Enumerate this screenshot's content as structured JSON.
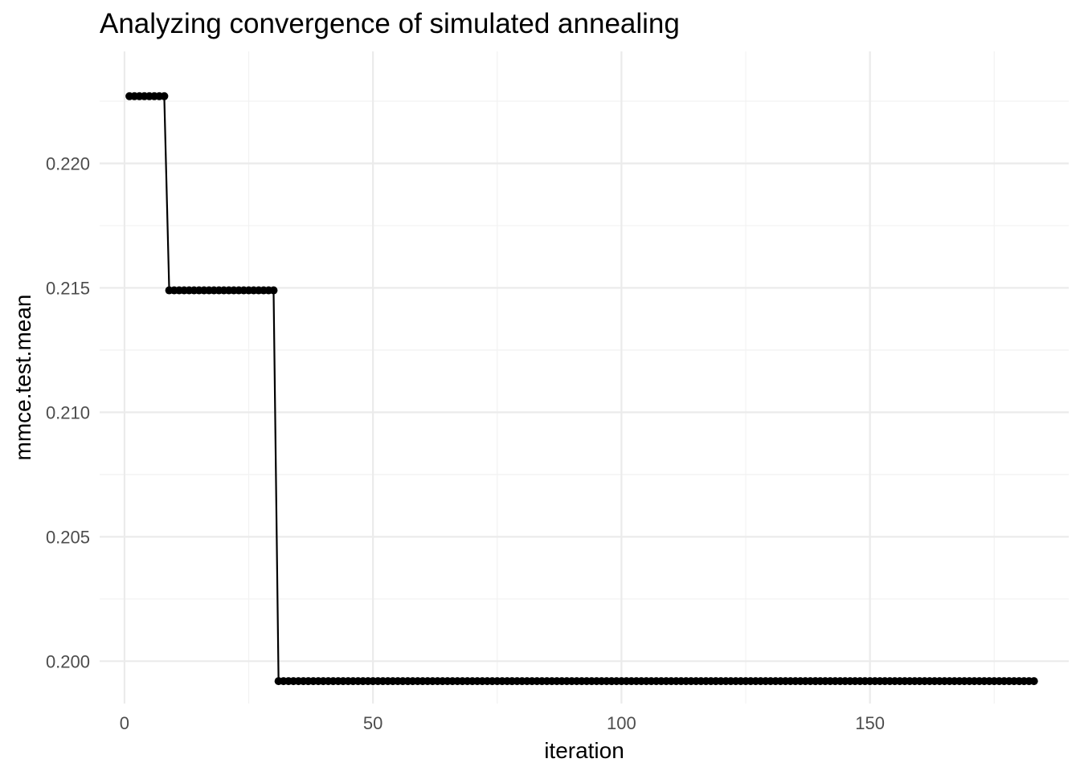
{
  "chart_data": {
    "type": "line",
    "title": "Analyzing convergence of simulated annealing",
    "xlabel": "iteration",
    "ylabel": "mmce.test.mean",
    "xlim": [
      -5,
      190
    ],
    "ylim": [
      0.1983,
      0.2245
    ],
    "x_ticks": [
      0,
      50,
      100,
      150
    ],
    "x_tick_labels": [
      "0",
      "50",
      "100",
      "150"
    ],
    "y_ticks": [
      0.2,
      0.205,
      0.21,
      0.215,
      0.22
    ],
    "y_tick_labels": [
      "0.200",
      "0.205",
      "0.210",
      "0.215",
      "0.220"
    ],
    "x_minor_ticks": [
      25,
      75,
      125,
      175
    ],
    "y_minor_ticks": [
      0.2025,
      0.2075,
      0.2125,
      0.2175,
      0.2225
    ],
    "grid": true,
    "legend": "none",
    "series": [
      {
        "segments": [
          {
            "x_start": 1,
            "x_end": 8,
            "value": 0.2227
          },
          {
            "x_start": 9,
            "x_end": 30,
            "value": 0.2149
          },
          {
            "x_start": 31,
            "x_end": 183,
            "value": 0.1992
          }
        ],
        "color": "#000000",
        "marker": "point"
      }
    ]
  }
}
